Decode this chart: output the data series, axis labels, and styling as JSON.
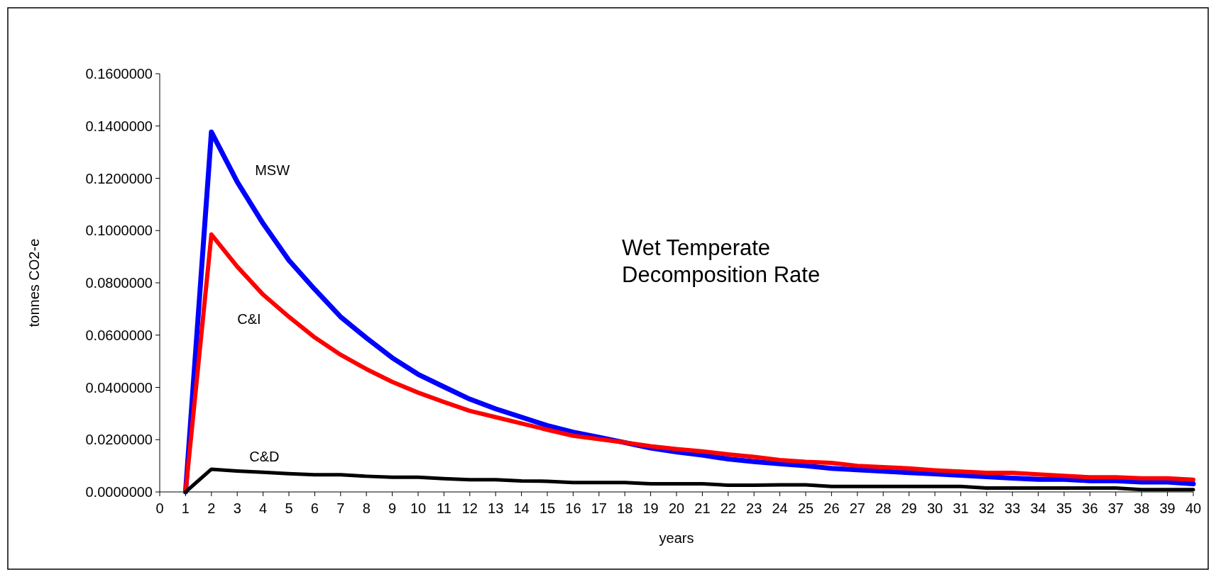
{
  "chart_data": {
    "type": "line",
    "xlabel": "years",
    "ylabel": "tonnes CO2-e",
    "annotations": [
      "Wet Temperate\nDecomposition Rate"
    ],
    "xlim": [
      0,
      40
    ],
    "xticks": [
      0,
      1,
      2,
      3,
      4,
      5,
      6,
      7,
      8,
      9,
      10,
      11,
      12,
      13,
      14,
      15,
      16,
      17,
      18,
      19,
      20,
      21,
      22,
      23,
      24,
      25,
      26,
      27,
      28,
      29,
      30,
      31,
      32,
      33,
      34,
      35,
      36,
      37,
      38,
      39,
      40
    ],
    "ylim": [
      0,
      0.16
    ],
    "yticks": [
      {
        "value": 0,
        "label": "0.0000000"
      },
      {
        "value": 0.02,
        "label": "0.0200000"
      },
      {
        "value": 0.04,
        "label": "0.0400000"
      },
      {
        "value": 0.06,
        "label": "0.0600000"
      },
      {
        "value": 0.08,
        "label": "0.0800000"
      },
      {
        "value": 0.1,
        "label": "0.1000000"
      },
      {
        "value": 0.12,
        "label": "0.1200000"
      },
      {
        "value": 0.14,
        "label": "0.1400000"
      },
      {
        "value": 0.16,
        "label": "0.1600000"
      }
    ],
    "grid": false,
    "legend": false,
    "marker": "none",
    "line_style": "solid",
    "x": [
      1,
      2,
      3,
      4,
      5,
      6,
      7,
      8,
      9,
      10,
      11,
      12,
      13,
      14,
      15,
      16,
      17,
      18,
      19,
      20,
      21,
      22,
      23,
      24,
      25,
      26,
      27,
      28,
      29,
      30,
      31,
      32,
      33,
      34,
      35,
      36,
      37,
      38,
      39,
      40
    ],
    "series": [
      {
        "name": "MSW",
        "color": "#0000ff",
        "values": [
          0,
          0.1377,
          0.1186,
          0.1027,
          0.0886,
          0.0775,
          0.067,
          0.0589,
          0.0513,
          0.045,
          0.0402,
          0.0355,
          0.0318,
          0.0286,
          0.0254,
          0.0229,
          0.0209,
          0.0189,
          0.0168,
          0.0153,
          0.0141,
          0.0126,
          0.0116,
          0.0108,
          0.01,
          0.009,
          0.0085,
          0.0079,
          0.0074,
          0.0069,
          0.0064,
          0.0058,
          0.0053,
          0.0048,
          0.0048,
          0.0043,
          0.0043,
          0.0038,
          0.0038,
          0.0031
        ]
      },
      {
        "name": "C&I",
        "color": "#ff0000",
        "values": [
          0,
          0.0985,
          0.0862,
          0.0755,
          0.067,
          0.0591,
          0.0525,
          0.047,
          0.0421,
          0.038,
          0.0344,
          0.031,
          0.0286,
          0.0262,
          0.0238,
          0.0215,
          0.0202,
          0.0189,
          0.0175,
          0.0164,
          0.0155,
          0.0144,
          0.0134,
          0.0122,
          0.0115,
          0.0111,
          0.01,
          0.0095,
          0.009,
          0.0083,
          0.0078,
          0.0073,
          0.0073,
          0.0067,
          0.0062,
          0.0056,
          0.0056,
          0.0052,
          0.0052,
          0.0047
        ]
      },
      {
        "name": "C&D",
        "color": "#000000",
        "values": [
          0,
          0.0087,
          0.008,
          0.0075,
          0.007,
          0.0066,
          0.0066,
          0.006,
          0.0056,
          0.0056,
          0.0051,
          0.0047,
          0.0047,
          0.0042,
          0.0041,
          0.0036,
          0.0036,
          0.0036,
          0.0031,
          0.0031,
          0.0031,
          0.0026,
          0.0026,
          0.0027,
          0.0027,
          0.0021,
          0.0021,
          0.0021,
          0.0021,
          0.0021,
          0.0021,
          0.0015,
          0.0015,
          0.0015,
          0.0015,
          0.0015,
          0.0015,
          0.0009,
          0.0009,
          0.0009
        ]
      }
    ]
  }
}
